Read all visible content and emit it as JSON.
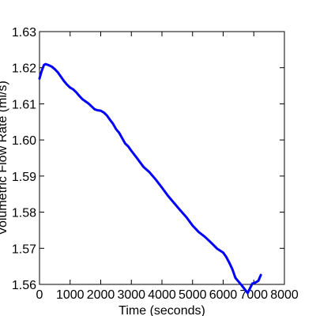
{
  "chart_data": {
    "type": "line",
    "title": "",
    "xlabel": "Time (seconds)",
    "ylabel": "Volumetric Flow Rate (ml/s)",
    "xlim": [
      0,
      8000
    ],
    "ylim": [
      1.56,
      1.63
    ],
    "x_ticks": [
      0,
      1000,
      2000,
      3000,
      4000,
      5000,
      6000,
      7000,
      8000
    ],
    "y_ticks": [
      1.56,
      1.57,
      1.58,
      1.59,
      1.6,
      1.61,
      1.62,
      1.63
    ],
    "x_tick_labels": [
      "0",
      "1000",
      "2000",
      "3000",
      "4000",
      "5000",
      "6000",
      "7000",
      "8000"
    ],
    "y_tick_labels": [
      "1.56",
      "1.57",
      "1.58",
      "1.59",
      "1.60",
      "1.61",
      "1.62",
      "1.63"
    ],
    "grid": false,
    "line_color": "#0000ff",
    "series": [
      {
        "x": [
          0,
          50,
          100,
          150,
          200,
          300,
          400,
          500,
          600,
          700,
          800,
          900,
          1000,
          1100,
          1200,
          1300,
          1400,
          1500,
          1600,
          1700,
          1800,
          1900,
          2000,
          2100,
          2200,
          2300,
          2400,
          2500,
          2600,
          2700,
          2800,
          2900,
          3000,
          3200,
          3400,
          3600,
          3800,
          4000,
          4200,
          4400,
          4600,
          4800,
          5000,
          5200,
          5400,
          5600,
          5800,
          6000,
          6100,
          6200,
          6300,
          6400,
          6600,
          6800,
          6950,
          7050,
          7150,
          7230
        ],
        "y": [
          1.617,
          1.6185,
          1.6198,
          1.6208,
          1.621,
          1.6207,
          1.6203,
          1.6196,
          1.6187,
          1.6175,
          1.6163,
          1.6153,
          1.6145,
          1.614,
          1.6132,
          1.6122,
          1.6113,
          1.6107,
          1.6101,
          1.6093,
          1.6085,
          1.6082,
          1.6081,
          1.6076,
          1.6068,
          1.6056,
          1.6045,
          1.603,
          1.602,
          1.6005,
          1.599,
          1.5982,
          1.597,
          1.5948,
          1.5925,
          1.591,
          1.589,
          1.5868,
          1.5845,
          1.5825,
          1.5805,
          1.5786,
          1.5763,
          1.5745,
          1.5732,
          1.5716,
          1.5699,
          1.5688,
          1.5676,
          1.566,
          1.5642,
          1.5618,
          1.5598,
          1.5576,
          1.5602,
          1.5605,
          1.561,
          1.5626
        ]
      }
    ]
  }
}
